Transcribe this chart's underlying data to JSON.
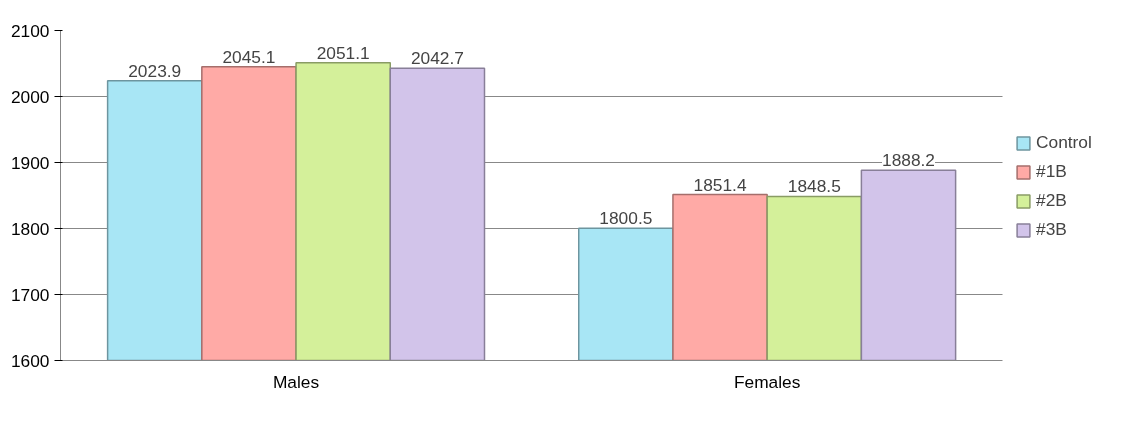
{
  "chart_data": {
    "type": "bar",
    "categories": [
      "Males",
      "Females"
    ],
    "series": [
      {
        "name": "Control",
        "color": "#a8e6f5",
        "values": [
          2023.9,
          1800.5
        ]
      },
      {
        "name": "#1B",
        "color": "#ffaaa6",
        "values": [
          2045.1,
          1851.4
        ]
      },
      {
        "name": "#2B",
        "color": "#d4f09a",
        "values": [
          2051.1,
          1848.5
        ]
      },
      {
        "name": "#3B",
        "color": "#d2c4ea",
        "values": [
          2042.7,
          1888.2
        ]
      }
    ],
    "ylim": [
      1600,
      2100
    ],
    "yticks": [
      1600,
      1700,
      1800,
      1900,
      2000,
      2100
    ],
    "grid": "y",
    "legend": "right",
    "data_labels": true
  }
}
